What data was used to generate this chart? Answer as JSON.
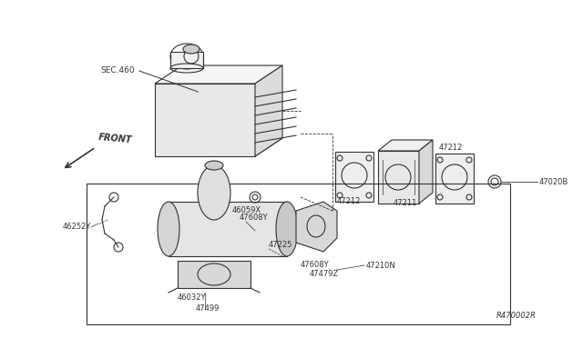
{
  "bg_color": "#ffffff",
  "line_color": "#333333",
  "fig_width": 6.4,
  "fig_height": 3.72,
  "dpi": 100,
  "labels": {
    "SEC460": "SEC.460",
    "FRONT": "FRONT",
    "47212_top": "47212",
    "47211": "47211",
    "47212_right": "47212",
    "47020B": "47020B",
    "46252Y": "46252Y",
    "46059X": "46059X",
    "47608Y_top": "47608Y",
    "47225": "47225",
    "47608Y_bot": "47608Y",
    "47479Z": "47479Z",
    "47210N": "47210N",
    "46032Y": "46032Y",
    "47499": "47499",
    "ref": "R470002R"
  }
}
